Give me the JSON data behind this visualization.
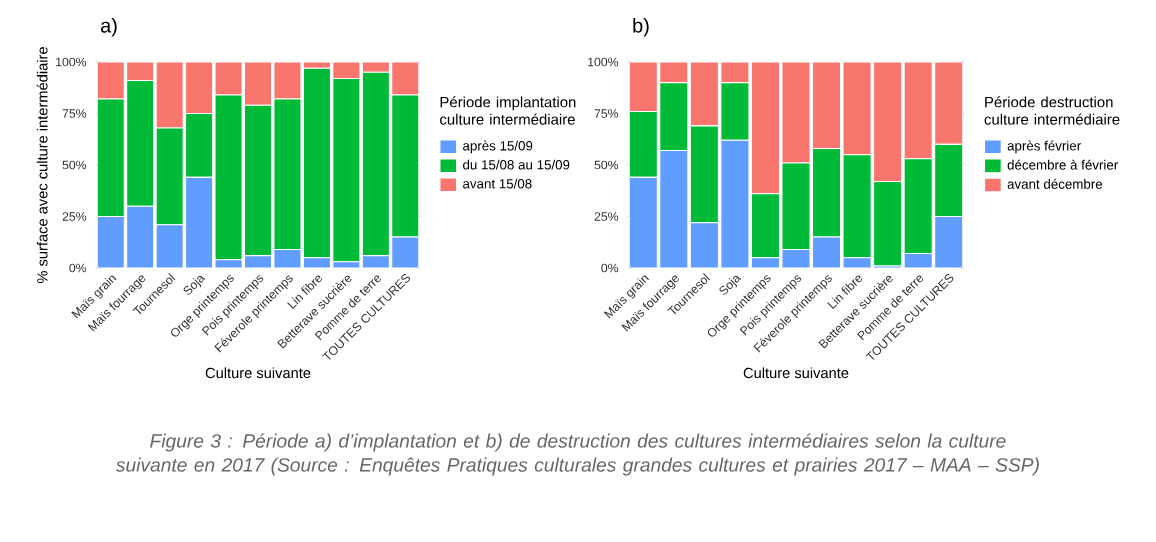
{
  "chart_data": [
    {
      "type": "bar",
      "stacked": true,
      "title": "a)",
      "xlabel": "Culture suivante",
      "ylabel": "% surface avec culture intermédiaire",
      "legend": "right",
      "legend_title": "Période implantation culture intermédiaire",
      "categories": [
        "Maïs grain",
        "Maïs fourrage",
        "Tournesol",
        "Soja",
        "Orge printemps",
        "Pois printemps",
        "Féverole printemps",
        "Lin fibre",
        "Betterave sucrière",
        "Pomme de terre",
        "TOUTES CULTURES"
      ],
      "ylim": [
        0,
        100
      ],
      "yticks": [
        {
          "value": 0,
          "label": "0%"
        },
        {
          "value": 25,
          "label": "25%"
        },
        {
          "value": 50,
          "label": "50%"
        },
        {
          "value": 75,
          "label": "75%"
        },
        {
          "value": 100,
          "label": "100%"
        }
      ],
      "series": [
        {
          "name": "après 15/09",
          "color": "#619cff",
          "values": [
            25,
            30,
            21,
            44,
            4,
            6,
            9,
            5,
            3,
            6,
            15
          ]
        },
        {
          "name": "du 15/08 au 15/09",
          "color": "#00ba38",
          "values": [
            57,
            61,
            47,
            31,
            80,
            73,
            73,
            92,
            89,
            89,
            69
          ]
        },
        {
          "name": "avant 15/08",
          "color": "#f8766d",
          "values": [
            18,
            9,
            32,
            25,
            16,
            21,
            18,
            3,
            8,
            5,
            16
          ]
        }
      ],
      "annotations": [
        "Figure 3 : Période a) d’implantation et b) de destruction des cultures intermédiaires selon la culture suivante en 2017 (Source : Enquêtes Pratiques culturales grandes cultures et prairies 2017 – MAA – SSP)"
      ]
    },
    {
      "type": "bar",
      "stacked": true,
      "title": "b)",
      "xlabel": "Culture suivante",
      "legend": "right",
      "legend_title": "Période destruction culture intermédiaire",
      "categories": [
        "Maïs grain",
        "Maïs fourrage",
        "Tournesol",
        "Soja",
        "Orge printemps",
        "Pois printemps",
        "Féverole printemps",
        "Lin fibre",
        "Betterave sucrière",
        "Pomme de terre",
        "TOUTES CULTURES"
      ],
      "ylim": [
        0,
        100
      ],
      "yticks": [
        {
          "value": 0,
          "label": "0%"
        },
        {
          "value": 25,
          "label": "25%"
        },
        {
          "value": 50,
          "label": "50%"
        },
        {
          "value": 75,
          "label": "75%"
        },
        {
          "value": 100,
          "label": "100%"
        }
      ],
      "series": [
        {
          "name": "après février",
          "color": "#619cff",
          "values": [
            44,
            57,
            22,
            62,
            5,
            9,
            15,
            5,
            1,
            7,
            25
          ]
        },
        {
          "name": "décembre à février",
          "color": "#00ba38",
          "values": [
            32,
            33,
            47,
            28,
            31,
            42,
            43,
            50,
            41,
            46,
            35
          ]
        },
        {
          "name": "avant décembre",
          "color": "#f8766d",
          "values": [
            24,
            10,
            31,
            10,
            64,
            49,
            42,
            45,
            58,
            47,
            40
          ]
        }
      ]
    }
  ]
}
